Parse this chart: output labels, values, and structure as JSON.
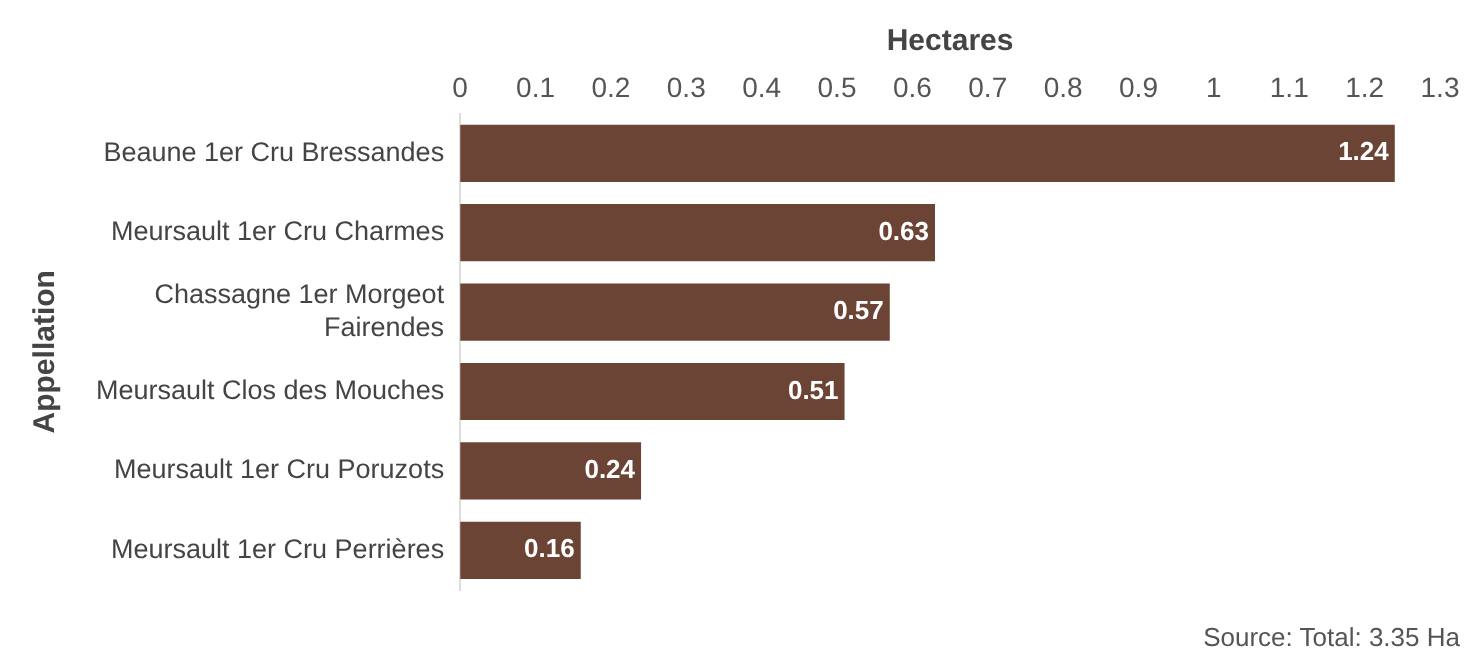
{
  "chart_data": {
    "type": "bar",
    "orientation": "horizontal",
    "xlabel": "Hectares",
    "ylabel": "Appellation",
    "categories": [
      "Beaune 1er Cru Bressandes",
      "Meursault 1er Cru Charmes",
      "Chassagne 1er Morgeot Fairendes",
      "Meursault Clos des Mouches",
      "Meursault 1er Cru Poruzots",
      "Meursault 1er Cru Perrières"
    ],
    "values": [
      1.24,
      0.63,
      0.57,
      0.51,
      0.24,
      0.16
    ],
    "color": "#6b4435",
    "xlim": [
      0,
      1.3
    ],
    "xticks": [
      0,
      0.1,
      0.2,
      0.3,
      0.4,
      0.5,
      0.6,
      0.7,
      0.8,
      0.9,
      1,
      1.1,
      1.2,
      1.3
    ],
    "grid": false,
    "legend": false,
    "data_labels": true,
    "annotations": [
      "Source: Total: 3.35 Ha"
    ]
  }
}
